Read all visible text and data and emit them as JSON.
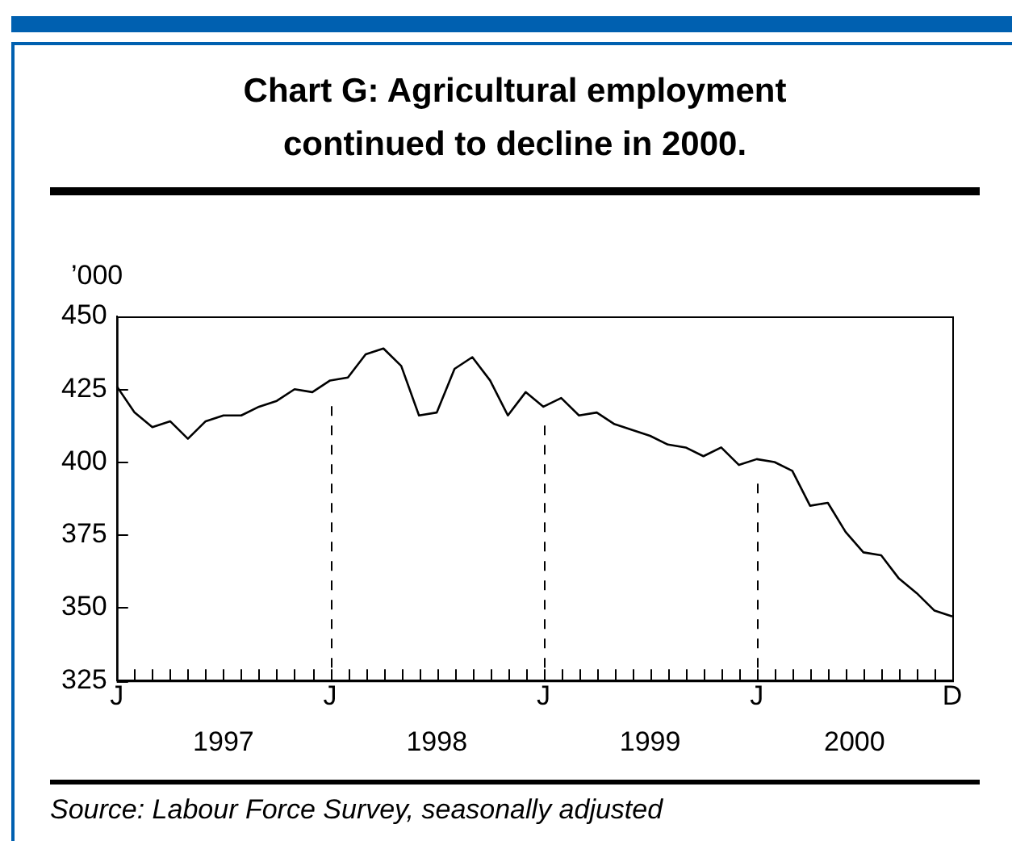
{
  "chart_data": {
    "type": "line",
    "title": "Chart G: Agricultural employment continued to decline in 2000.",
    "ylabel": "’000",
    "categories": [
      "J",
      null,
      null,
      null,
      null,
      null,
      null,
      null,
      null,
      null,
      null,
      null,
      "J",
      null,
      null,
      null,
      null,
      null,
      null,
      null,
      null,
      null,
      null,
      null,
      "J",
      null,
      null,
      null,
      null,
      null,
      null,
      null,
      null,
      null,
      null,
      null,
      "J",
      null,
      null,
      null,
      null,
      null,
      null,
      null,
      null,
      null,
      null,
      "D"
    ],
    "series": [
      {
        "color": "#000000",
        "values": [
          426,
          417,
          412,
          414,
          408,
          414,
          416,
          416,
          419,
          421,
          425,
          424,
          428,
          429,
          437,
          439,
          433,
          416,
          417,
          432,
          436,
          428,
          416,
          424,
          419,
          422,
          416,
          417,
          413,
          411,
          409,
          406,
          405,
          402,
          405,
          399,
          401,
          400,
          397,
          385,
          386,
          376,
          369,
          368,
          360,
          355,
          349,
          347
        ]
      }
    ],
    "ylim": [
      325,
      450
    ],
    "yticks": [
      325,
      350,
      375,
      400,
      425,
      450
    ],
    "annotations": [
      "1997",
      "1998",
      "1999",
      "2000",
      "Source: Labour Force Survey, seasonally adjusted"
    ],
    "marker": "none",
    "line_style": "solid",
    "legend": false
  }
}
